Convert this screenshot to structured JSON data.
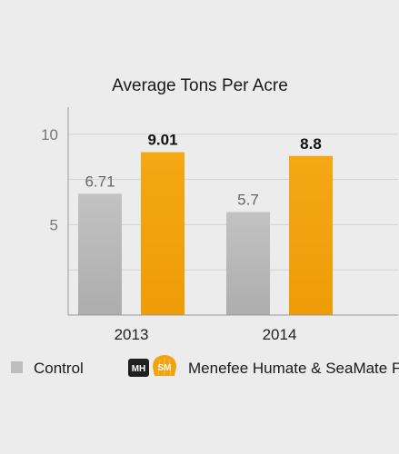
{
  "chart_data": {
    "type": "bar",
    "title": "Average Tons Per Acre",
    "categories": [
      "2013",
      "2014"
    ],
    "series": [
      {
        "name": "Control",
        "values": [
          6.71,
          5.7
        ],
        "labels": [
          "6.71",
          "5.7"
        ],
        "color": "#bdbdbd",
        "label_color": "#666666"
      },
      {
        "name": "Menefee Humate & SeaMate Fe",
        "values": [
          9.01,
          8.8
        ],
        "labels": [
          "9.01",
          "8.8"
        ],
        "color": "#f2a20f",
        "label_color": "#111111"
      }
    ],
    "yticks": [
      "10",
      "5"
    ],
    "ytick_values": [
      10,
      5
    ],
    "ylim": [
      0,
      11.5
    ],
    "grid": true,
    "legend_position": "bottom"
  },
  "legend": {
    "badges": {
      "mh": "MH",
      "sm": "SM"
    }
  },
  "colors": {
    "background": "#ececec",
    "grid": "#d2d2d2",
    "axis": "#9a9a9a",
    "badge_dark": "#1f1f1f",
    "shell": "#f2a20f"
  }
}
